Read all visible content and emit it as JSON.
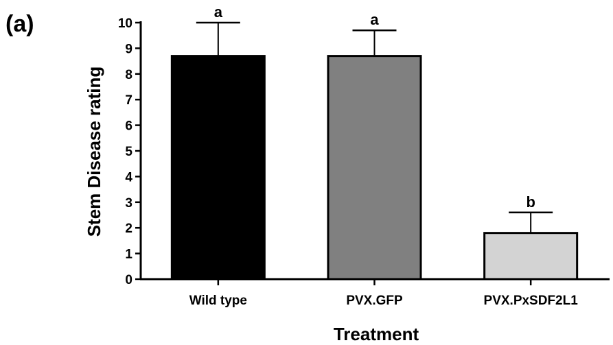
{
  "panel_label": "(a)",
  "chart_data": {
    "type": "bar",
    "categories": [
      "Wild type",
      "PVX.GFP",
      "PVX.PxSDF2L1"
    ],
    "values": [
      8.7,
      8.7,
      1.8
    ],
    "error_upper": [
      10.0,
      9.7,
      2.6
    ],
    "significance_letters": [
      "a",
      "a",
      "b"
    ],
    "bar_colors": [
      "#000000",
      "#808080",
      "#d3d3d3"
    ],
    "xlabel": "Treatment",
    "ylabel": "Stem Disease rating",
    "ylim": [
      0,
      10
    ],
    "yticks": [
      "0",
      "1",
      "2",
      "3",
      "4",
      "5",
      "6",
      "7",
      "8",
      "9",
      "10"
    ],
    "grid": false
  }
}
